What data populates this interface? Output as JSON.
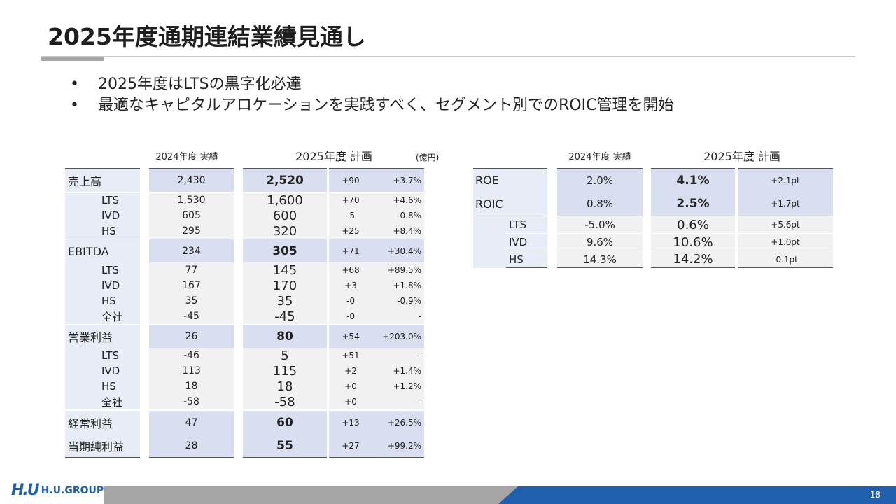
{
  "title": "2025年度通期連結業績見通し",
  "bullets": [
    "2025年度はLTSの黒字化必達",
    "最適なキャピタルアロケーションを実践すべく、セグメント別でのROIC管理を開始"
  ],
  "bullet_mark": "•",
  "headers": {
    "actual": "2024年度 実績",
    "plan": "2025年度 計画",
    "unit": "(億円)"
  },
  "left_rows": [
    {
      "label": "売上高",
      "actual": "2,430",
      "plan": "2,520",
      "diff": "+90",
      "pct": "+3.7%"
    },
    {
      "label": "LTS",
      "actual": "1,530",
      "plan": "1,600",
      "diff": "+70",
      "pct": "+4.6%"
    },
    {
      "label": "IVD",
      "actual": "605",
      "plan": "600",
      "diff": "-5",
      "pct": "-0.8%"
    },
    {
      "label": "HS",
      "actual": "295",
      "plan": "320",
      "diff": "+25",
      "pct": "+8.4%"
    },
    {
      "label": "EBITDA",
      "actual": "234",
      "plan": "305",
      "diff": "+71",
      "pct": "+30.4%"
    },
    {
      "label": "LTS",
      "actual": "77",
      "plan": "145",
      "diff": "+68",
      "pct": "+89.5%"
    },
    {
      "label": "IVD",
      "actual": "167",
      "plan": "170",
      "diff": "+3",
      "pct": "+1.8%"
    },
    {
      "label": "HS",
      "actual": "35",
      "plan": "35",
      "diff": "-0",
      "pct": "-0.9%"
    },
    {
      "label": "全社",
      "actual": "-45",
      "plan": "-45",
      "diff": "-0",
      "pct": "-"
    },
    {
      "label": "営業利益",
      "actual": "26",
      "plan": "80",
      "diff": "+54",
      "pct": "+203.0%"
    },
    {
      "label": "LTS",
      "actual": "-46",
      "plan": "5",
      "diff": "+51",
      "pct": "-"
    },
    {
      "label": "IVD",
      "actual": "113",
      "plan": "115",
      "diff": "+2",
      "pct": "+1.4%"
    },
    {
      "label": "HS",
      "actual": "18",
      "plan": "18",
      "diff": "+0",
      "pct": "+1.2%"
    },
    {
      "label": "全社",
      "actual": "-58",
      "plan": "-58",
      "diff": "+0",
      "pct": "-"
    },
    {
      "label": "経常利益",
      "actual": "47",
      "plan": "60",
      "diff": "+13",
      "pct": "+26.5%"
    },
    {
      "label": "当期純利益",
      "actual": "28",
      "plan": "55",
      "diff": "+27",
      "pct": "+99.2%"
    }
  ],
  "right_rows": [
    {
      "label": "ROE",
      "actual": "2.0%",
      "plan": "4.1%",
      "diff": "+2.1pt"
    },
    {
      "label": "ROIC",
      "actual": "0.8%",
      "plan": "2.5%",
      "diff": "+1.7pt"
    },
    {
      "label": "LTS",
      "actual": "-5.0%",
      "plan": "0.6%",
      "diff": "+5.6pt"
    },
    {
      "label": "IVD",
      "actual": "9.6%",
      "plan": "10.6%",
      "diff": "+1.0pt"
    },
    {
      "label": "HS",
      "actual": "14.3%",
      "plan": "14.2%",
      "diff": "-0.1pt"
    }
  ],
  "footer": {
    "logo_mark": "H.U",
    "logo_text": "H.U.GROUP",
    "page": "18"
  },
  "colors": {
    "accent": "#1f5fae",
    "main_row": "#d9dff0",
    "sub_row": "#f1f1f1"
  }
}
